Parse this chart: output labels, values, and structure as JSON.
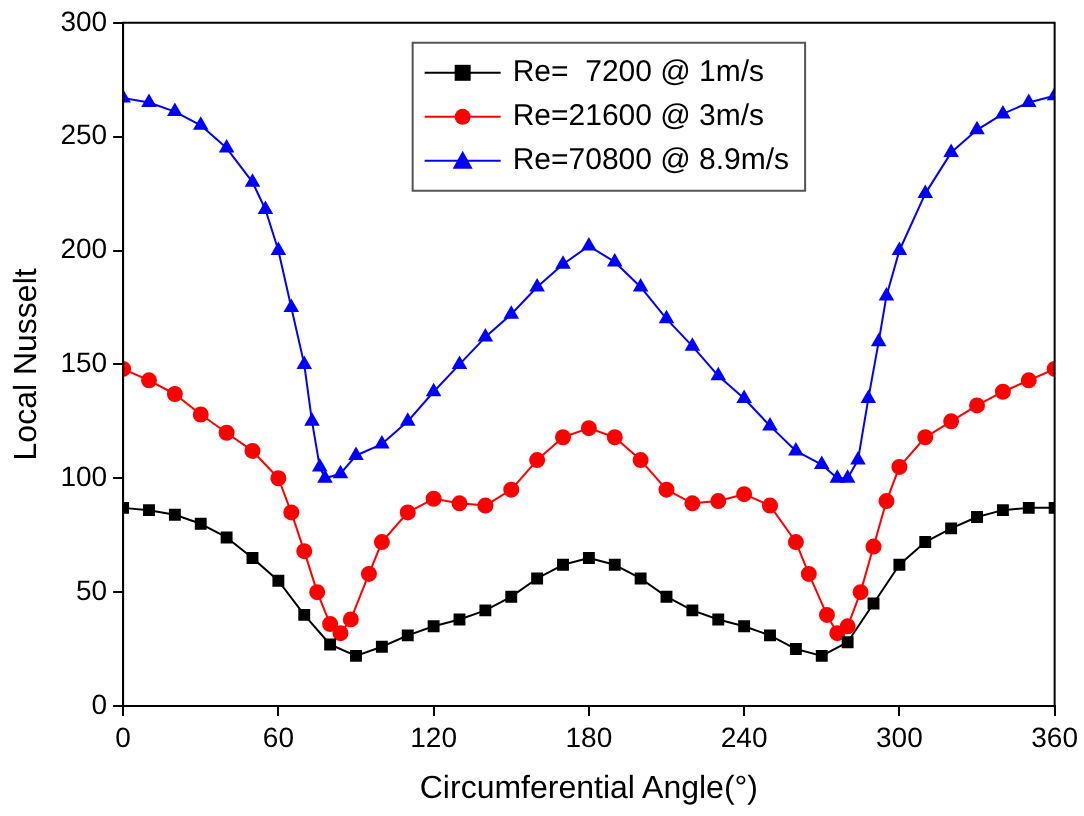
{
  "chart_data": {
    "type": "line",
    "xlabel": "Circumferential Angle(°)",
    "ylabel": "Local Nusselt",
    "xlim": [
      0,
      360
    ],
    "xticks": [
      0,
      60,
      120,
      180,
      240,
      300,
      360
    ],
    "ylim": [
      0,
      300
    ],
    "yticks": [
      0,
      50,
      100,
      150,
      200,
      250,
      300
    ],
    "legend": "top",
    "grid": false,
    "series": [
      {
        "name": "Re=  7200 @ 1m/s",
        "color": "#000000",
        "marker": "square",
        "x": [
          0,
          10,
          20,
          30,
          40,
          50,
          60,
          70,
          80,
          90,
          100,
          110,
          120,
          130,
          140,
          150,
          160,
          170,
          180,
          190,
          200,
          210,
          220,
          230,
          240,
          250,
          260,
          270,
          280,
          290,
          300,
          310,
          320,
          330,
          340,
          350,
          360
        ],
        "values": [
          87,
          86,
          84,
          80,
          74,
          65,
          55,
          40,
          27,
          22,
          26,
          31,
          35,
          38,
          42,
          48,
          56,
          62,
          65,
          62,
          56,
          48,
          42,
          38,
          35,
          31,
          25,
          22,
          28,
          45,
          62,
          72,
          78,
          83,
          86,
          87,
          87
        ]
      },
      {
        "name": "Re=21600 @ 3m/s",
        "color": "#ff0000",
        "marker": "circle",
        "x": [
          0,
          10,
          20,
          30,
          40,
          50,
          60,
          65,
          70,
          75,
          80,
          84,
          88,
          95,
          100,
          110,
          120,
          130,
          140,
          150,
          160,
          170,
          180,
          190,
          200,
          210,
          220,
          230,
          240,
          250,
          260,
          265,
          272,
          276,
          280,
          285,
          290,
          295,
          300,
          310,
          320,
          330,
          340,
          350,
          360
        ],
        "values": [
          148,
          143,
          137,
          128,
          120,
          112,
          100,
          85,
          68,
          50,
          36,
          32,
          38,
          58,
          72,
          85,
          91,
          89,
          88,
          95,
          108,
          118,
          122,
          118,
          108,
          95,
          89,
          90,
          93,
          88,
          72,
          58,
          40,
          32,
          35,
          50,
          70,
          90,
          105,
          118,
          125,
          132,
          138,
          143,
          148
        ]
      },
      {
        "name": "Re=70800 @ 8.9m/s",
        "color": "#0000ff",
        "marker": "triangle",
        "x": [
          0,
          10,
          20,
          30,
          40,
          50,
          55,
          60,
          65,
          70,
          73,
          76,
          78,
          84,
          90,
          100,
          110,
          120,
          130,
          140,
          150,
          160,
          170,
          180,
          190,
          200,
          210,
          220,
          230,
          240,
          250,
          260,
          270,
          276,
          280,
          284,
          288,
          292,
          295,
          300,
          310,
          320,
          330,
          340,
          350,
          360
        ],
        "values": [
          267,
          265,
          261,
          255,
          245,
          230,
          218,
          200,
          175,
          150,
          125,
          105,
          100,
          102,
          110,
          115,
          125,
          138,
          150,
          162,
          172,
          184,
          194,
          202,
          195,
          184,
          170,
          158,
          145,
          135,
          123,
          112,
          106,
          100,
          100,
          108,
          135,
          160,
          180,
          200,
          225,
          243,
          253,
          260,
          265,
          268
        ]
      }
    ]
  }
}
